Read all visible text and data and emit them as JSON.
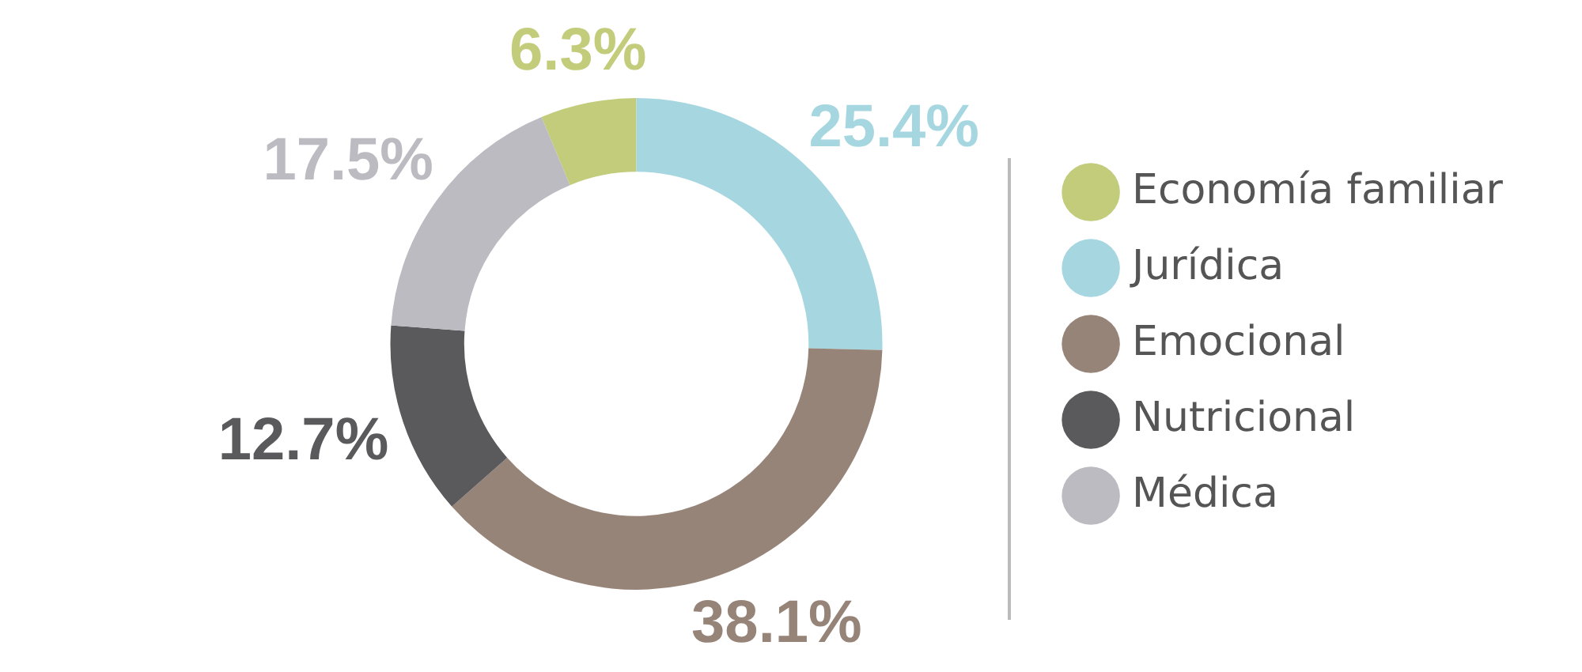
{
  "chart_data": {
    "type": "donut",
    "categories": [
      "Economía familiar",
      "Jurídica",
      "Emocional",
      "Nutricional",
      "Médica"
    ],
    "values": [
      6.3,
      25.4,
      38.1,
      12.7,
      17.5
    ],
    "colors": [
      "#c3cc7a",
      "#a6d7e0",
      "#978479",
      "#5a5a5c",
      "#bcbbc1"
    ],
    "value_labels": [
      "6.3%",
      "25.4%",
      "38.1%",
      "12.7%",
      "17.5%"
    ],
    "legend": "right"
  }
}
